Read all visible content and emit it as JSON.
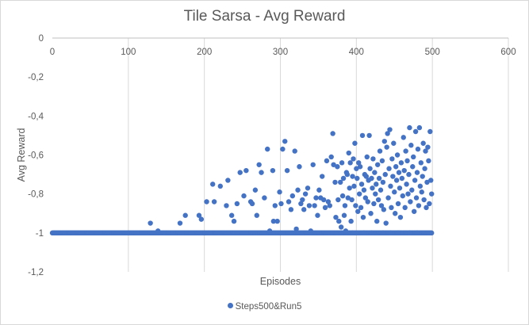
{
  "chart_data": {
    "type": "scatter",
    "title": "Tile Sarsa - Avg Reward",
    "xlabel": "Episodes",
    "ylabel": "Avg Reward",
    "xlim": [
      0,
      600
    ],
    "ylim": [
      -1.2,
      0
    ],
    "x_ticks": [
      0,
      100,
      200,
      300,
      400,
      500,
      600
    ],
    "x_tick_labels": [
      "0",
      "100",
      "200",
      "300",
      "400",
      "500",
      "600"
    ],
    "y_ticks": [
      0,
      -0.2,
      -0.4,
      -0.6,
      -0.8,
      -1,
      -1.2
    ],
    "y_tick_labels": [
      "0",
      "-0,2",
      "-0,4",
      "-0,6",
      "-0,8",
      "-1",
      "-1,2"
    ],
    "grid": {
      "x_major": true,
      "y_major": false
    },
    "legend_position": "bottom",
    "marker_color": "#4472c4",
    "series": [
      {
        "name": "Steps500&Run5",
        "baseline": {
          "x_range": [
            0,
            499
          ],
          "y": -1.0,
          "note_visible": false
        },
        "points": [
          [
            129,
            -0.95
          ],
          [
            139,
            -0.99
          ],
          [
            168,
            -0.95
          ],
          [
            175,
            -0.91
          ],
          [
            193,
            -0.91
          ],
          [
            196,
            -0.93
          ],
          [
            203,
            -0.84
          ],
          [
            211,
            -0.75
          ],
          [
            213,
            -0.84
          ],
          [
            221,
            -0.76
          ],
          [
            229,
            -0.86
          ],
          [
            231,
            -0.73
          ],
          [
            236,
            -0.91
          ],
          [
            239,
            -0.94
          ],
          [
            243,
            -0.85
          ],
          [
            247,
            -0.69
          ],
          [
            252,
            -0.81
          ],
          [
            255,
            -0.68
          ],
          [
            261,
            -0.84
          ],
          [
            263,
            -0.85
          ],
          [
            267,
            -0.78
          ],
          [
            269,
            -0.91
          ],
          [
            272,
            -0.65
          ],
          [
            275,
            -0.69
          ],
          [
            279,
            -0.82
          ],
          [
            283,
            -0.57
          ],
          [
            286,
            -0.99
          ],
          [
            290,
            -0.68
          ],
          [
            291,
            -0.94
          ],
          [
            293,
            -0.86
          ],
          [
            296,
            -0.94
          ],
          [
            299,
            -0.79
          ],
          [
            301,
            -0.85
          ],
          [
            303,
            -0.57
          ],
          [
            306,
            -0.53
          ],
          [
            309,
            -0.68
          ],
          [
            311,
            -0.84
          ],
          [
            314,
            -0.88
          ],
          [
            316,
            -0.81
          ],
          [
            319,
            -0.58
          ],
          [
            321,
            -0.98
          ],
          [
            323,
            -0.78
          ],
          [
            325,
            -0.66
          ],
          [
            327,
            -0.85
          ],
          [
            329,
            -0.83
          ],
          [
            331,
            -0.88
          ],
          [
            333,
            -0.8
          ],
          [
            336,
            -0.77
          ],
          [
            338,
            -0.86
          ],
          [
            340,
            -0.99
          ],
          [
            343,
            -0.65
          ],
          [
            345,
            -0.86
          ],
          [
            347,
            -0.82
          ],
          [
            349,
            -0.91
          ],
          [
            351,
            -0.78
          ],
          [
            353,
            -0.82
          ],
          [
            355,
            -0.71
          ],
          [
            357,
            -0.83
          ],
          [
            359,
            -0.87
          ],
          [
            361,
            -0.63
          ],
          [
            363,
            -0.84
          ],
          [
            365,
            -0.86
          ],
          [
            367,
            -0.61
          ],
          [
            369,
            -0.49
          ],
          [
            370,
            -0.65
          ],
          [
            372,
            -0.74
          ],
          [
            373,
            -0.92
          ],
          [
            375,
            -0.66
          ],
          [
            376,
            -0.83
          ],
          [
            377,
            -0.94
          ],
          [
            379,
            -0.74
          ],
          [
            380,
            -0.97
          ],
          [
            381,
            -0.64
          ],
          [
            382,
            -0.81
          ],
          [
            383,
            -0.72
          ],
          [
            384,
            -0.91
          ],
          [
            385,
            -0.86
          ],
          [
            386,
            -0.99
          ],
          [
            387,
            -0.69
          ],
          [
            388,
            -0.7
          ],
          [
            389,
            -0.82
          ],
          [
            390,
            -0.59
          ],
          [
            391,
            -0.77
          ],
          [
            392,
            -0.64
          ],
          [
            393,
            -0.94
          ],
          [
            394,
            -0.83
          ],
          [
            395,
            -0.71
          ],
          [
            396,
            -0.62
          ],
          [
            397,
            -0.76
          ],
          [
            398,
            -0.54
          ],
          [
            399,
            -0.86
          ],
          [
            400,
            -0.67
          ],
          [
            401,
            -0.72
          ],
          [
            402,
            -0.89
          ],
          [
            403,
            -0.64
          ],
          [
            404,
            -0.8
          ],
          [
            405,
            -0.66
          ],
          [
            406,
            -0.87
          ],
          [
            407,
            -0.75
          ],
          [
            408,
            -0.5
          ],
          [
            409,
            -0.92
          ],
          [
            410,
            -0.78
          ],
          [
            411,
            -0.7
          ],
          [
            412,
            -0.82
          ],
          [
            413,
            -0.71
          ],
          [
            414,
            -0.61
          ],
          [
            415,
            -0.84
          ],
          [
            416,
            -0.73
          ],
          [
            417,
            -0.5
          ],
          [
            418,
            -0.67
          ],
          [
            419,
            -0.9
          ],
          [
            420,
            -0.72
          ],
          [
            421,
            -0.77
          ],
          [
            422,
            -0.62
          ],
          [
            423,
            -0.85
          ],
          [
            424,
            -0.69
          ],
          [
            425,
            -0.8
          ],
          [
            426,
            -0.75
          ],
          [
            427,
            -0.94
          ],
          [
            428,
            -0.65
          ],
          [
            429,
            -0.83
          ],
          [
            430,
            -0.72
          ],
          [
            431,
            -0.58
          ],
          [
            432,
            -0.78
          ],
          [
            433,
            -0.86
          ],
          [
            434,
            -0.63
          ],
          [
            435,
            -0.74
          ],
          [
            436,
            -0.88
          ],
          [
            437,
            -0.53
          ],
          [
            438,
            -0.7
          ],
          [
            439,
            -0.95
          ],
          [
            440,
            -0.56
          ],
          [
            441,
            -0.49
          ],
          [
            442,
            -0.82
          ],
          [
            443,
            -0.67
          ],
          [
            444,
            -0.47
          ],
          [
            445,
            -0.76
          ],
          [
            446,
            -0.87
          ],
          [
            447,
            -0.62
          ],
          [
            448,
            -0.71
          ],
          [
            449,
            -0.54
          ],
          [
            450,
            -0.79
          ],
          [
            451,
            -0.9
          ],
          [
            452,
            -0.66
          ],
          [
            453,
            -0.73
          ],
          [
            454,
            -0.6
          ],
          [
            455,
            -0.85
          ],
          [
            456,
            -0.69
          ],
          [
            457,
            -0.77
          ],
          [
            458,
            -0.92
          ],
          [
            459,
            -0.64
          ],
          [
            460,
            -0.72
          ],
          [
            461,
            -0.81
          ],
          [
            462,
            -0.51
          ],
          [
            463,
            -0.68
          ],
          [
            464,
            -0.87
          ],
          [
            465,
            -0.58
          ],
          [
            466,
            -0.75
          ],
          [
            467,
            -0.63
          ],
          [
            468,
            -0.8
          ],
          [
            469,
            -0.7
          ],
          [
            470,
            -0.46
          ],
          [
            471,
            -0.84
          ],
          [
            472,
            -0.55
          ],
          [
            473,
            -0.78
          ],
          [
            474,
            -0.66
          ],
          [
            475,
            -0.61
          ],
          [
            476,
            -0.89
          ],
          [
            477,
            -0.73
          ],
          [
            478,
            -0.48
          ],
          [
            479,
            -0.82
          ],
          [
            480,
            -0.69
          ],
          [
            481,
            -0.57
          ],
          [
            482,
            -0.86
          ],
          [
            483,
            -0.46
          ],
          [
            484,
            -0.76
          ],
          [
            485,
            -0.64
          ],
          [
            486,
            -0.79
          ],
          [
            487,
            -0.71
          ],
          [
            488,
            -0.54
          ],
          [
            489,
            -0.83
          ],
          [
            490,
            -0.67
          ],
          [
            491,
            -0.58
          ],
          [
            492,
            -0.87
          ],
          [
            493,
            -0.74
          ],
          [
            494,
            -0.56
          ],
          [
            495,
            -0.63
          ],
          [
            496,
            -0.85
          ],
          [
            497,
            -0.48
          ],
          [
            498,
            -0.73
          ],
          [
            499,
            -0.8
          ],
          [
            380,
            -1.0
          ],
          [
            395,
            -1.0
          ],
          [
            410,
            -1.0
          ],
          [
            420,
            -1.0
          ],
          [
            435,
            -1.0
          ],
          [
            445,
            -1.0
          ],
          [
            455,
            -1.0
          ],
          [
            470,
            -1.0
          ],
          [
            480,
            -1.0
          ]
        ]
      }
    ]
  }
}
